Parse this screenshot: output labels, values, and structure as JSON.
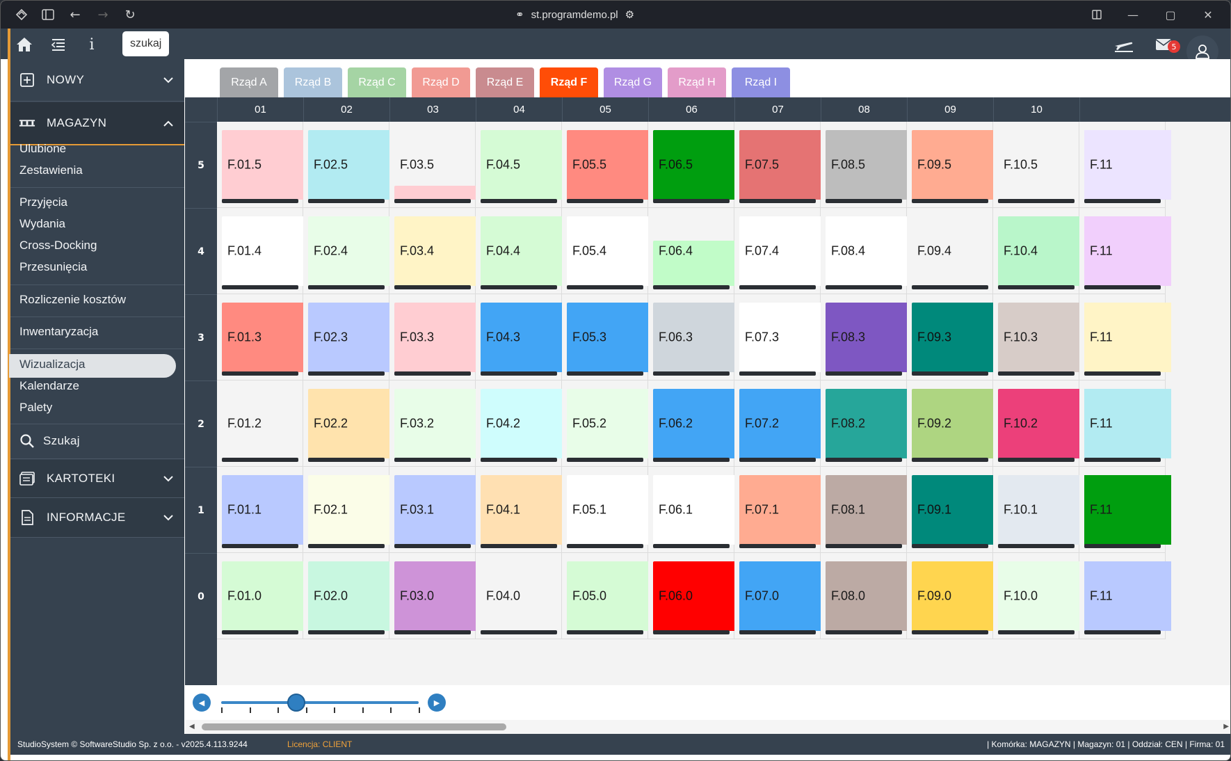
{
  "browser": {
    "url": "st.programdemo.pl"
  },
  "appbar": {
    "search_label": "szukaj",
    "messages_count": "5"
  },
  "sidebar": {
    "sections": {
      "nowy": "NOWY",
      "magazyn": "MAGAZYN",
      "kartoteki": "KARTOTEKI",
      "informacje": "INFORMACJE"
    },
    "items": {
      "ulubione": "Ulubione",
      "zestawienia": "Zestawienia",
      "przyjecia": "Przyjęcia",
      "wydania": "Wydania",
      "cross_docking": "Cross-Docking",
      "przesuniecia": "Przesunięcia",
      "rozliczenie": "Rozliczenie kosztów",
      "inwentaryzacja": "Inwentaryzacja",
      "wizualizacja": "Wizualizacja",
      "kalendarze": "Kalendarze",
      "palety": "Palety",
      "szukaj": "Szukaj"
    }
  },
  "tabs": [
    {
      "label": "Rząd A",
      "color": "#a3a5a8"
    },
    {
      "label": "Rząd B",
      "color": "#abc4dc"
    },
    {
      "label": "Rząd C",
      "color": "#a5d4a4"
    },
    {
      "label": "Rząd D",
      "color": "#f19a93"
    },
    {
      "label": "Rząd E",
      "color": "#c98b8f"
    },
    {
      "label": "Rząd F",
      "color": "#ff4d07",
      "active": true
    },
    {
      "label": "Rząd G",
      "color": "#b08ee3"
    },
    {
      "label": "Rząd H",
      "color": "#e39cc9"
    },
    {
      "label": "Rząd I",
      "color": "#8d8fe2"
    }
  ],
  "columns": [
    "01",
    "02",
    "03",
    "04",
    "05",
    "06",
    "07",
    "08",
    "09",
    "10"
  ],
  "rows": [
    "5",
    "4",
    "3",
    "2",
    "1",
    "0"
  ],
  "cells": [
    [
      {
        "label": "F.01.5",
        "color": "#ffcdd2"
      },
      {
        "label": "F.02.5",
        "color": "#b2ebf2"
      },
      {
        "label": "F.03.5",
        "color": "#ffcdd2",
        "partial": 0.2
      },
      {
        "label": "F.04.5",
        "color": "#d5fbd5"
      },
      {
        "label": "F.05.5",
        "color": "#ff8a80"
      },
      {
        "label": "F.06.5",
        "color": "#009e0f"
      },
      {
        "label": "F.07.5",
        "color": "#e57373"
      },
      {
        "label": "F.08.5",
        "color": "#bdbdbd"
      },
      {
        "label": "F.09.5",
        "color": "#ffab91"
      },
      {
        "label": "F.10.5",
        "color": "none"
      }
    ],
    [
      {
        "label": "F.01.4",
        "color": "#ffffff"
      },
      {
        "label": "F.02.4",
        "color": "#e8fde8"
      },
      {
        "label": "F.03.4",
        "color": "#fff4c6"
      },
      {
        "label": "F.04.4",
        "color": "#d5fbd5"
      },
      {
        "label": "F.05.4",
        "color": "#ffffff"
      },
      {
        "label": "F.06.4",
        "color": "#c1fcc8",
        "partial": 0.65
      },
      {
        "label": "F.07.4",
        "color": "#ffffff"
      },
      {
        "label": "F.08.4",
        "color": "#ffffff"
      },
      {
        "label": "F.09.4",
        "color": "none"
      },
      {
        "label": "F.10.4",
        "color": "#b9f6ca"
      }
    ],
    [
      {
        "label": "F.01.3",
        "color": "#ff8a80"
      },
      {
        "label": "F.02.3",
        "color": "#b9c9ff"
      },
      {
        "label": "F.03.3",
        "color": "#ffcdd2"
      },
      {
        "label": "F.04.3",
        "color": "#42a5f5"
      },
      {
        "label": "F.05.3",
        "color": "#42a5f5"
      },
      {
        "label": "F.06.3",
        "color": "#cfd6dc"
      },
      {
        "label": "F.07.3",
        "color": "#ffffff"
      },
      {
        "label": "F.08.3",
        "color": "#7e57c2"
      },
      {
        "label": "F.09.3",
        "color": "#00897b"
      },
      {
        "label": "F.10.3",
        "color": "#d7ccc8"
      }
    ],
    [
      {
        "label": "F.01.2",
        "color": "none"
      },
      {
        "label": "F.02.2",
        "color": "#ffe3ad"
      },
      {
        "label": "F.03.2",
        "color": "#e8fde8"
      },
      {
        "label": "F.04.2",
        "color": "#cffdfd"
      },
      {
        "label": "F.05.2",
        "color": "#e8fde8"
      },
      {
        "label": "F.06.2",
        "color": "#42a5f5"
      },
      {
        "label": "F.07.2",
        "color": "#42a5f5"
      },
      {
        "label": "F.08.2",
        "color": "#26a69a"
      },
      {
        "label": "F.09.2",
        "color": "#aed581"
      },
      {
        "label": "F.10.2",
        "color": "#ec407a"
      }
    ],
    [
      {
        "label": "F.01.1",
        "color": "#b9c9ff"
      },
      {
        "label": "F.02.1",
        "color": "#fbfde8"
      },
      {
        "label": "F.03.1",
        "color": "#b9c9ff"
      },
      {
        "label": "F.04.1",
        "color": "#ffe0b2"
      },
      {
        "label": "F.05.1",
        "color": "#ffffff"
      },
      {
        "label": "F.06.1",
        "color": "#ffffff"
      },
      {
        "label": "F.07.1",
        "color": "#ffab91"
      },
      {
        "label": "F.08.1",
        "color": "#bcaaa4"
      },
      {
        "label": "F.09.1",
        "color": "#00897b"
      },
      {
        "label": "F.10.1",
        "color": "#e3e9f0"
      }
    ],
    [
      {
        "label": "F.01.0",
        "color": "#d5fbd5"
      },
      {
        "label": "F.02.0",
        "color": "#c8f7e0"
      },
      {
        "label": "F.03.0",
        "color": "#ce93d8"
      },
      {
        "label": "F.04.0",
        "color": "none"
      },
      {
        "label": "F.05.0",
        "color": "#d5fbd5"
      },
      {
        "label": "F.06.0",
        "color": "#ff0000"
      },
      {
        "label": "F.07.0",
        "color": "#42a5f5"
      },
      {
        "label": "F.08.0",
        "color": "#bcaaa4"
      },
      {
        "label": "F.09.0",
        "color": "#ffd54f"
      },
      {
        "label": "F.10.0",
        "color": "#e8fde8"
      }
    ]
  ],
  "partial_column": {
    "label": "F.11",
    "colors": [
      "#ece4ff",
      "#f1cffc",
      "#fff4c6",
      "#b2ebf2",
      "#009e0f",
      "#b9c9ff"
    ]
  },
  "zoom": {
    "level_fraction": 0.38
  },
  "footer": {
    "left": "StudioSystem © SoftwareStudio Sp. z o.o. - v2025.4.113.9244",
    "license": "Licencja: CLIENT",
    "right": "| Komórka: MAGAZYN | Magazyn: 01 | Oddział: CEN | Firma: 01"
  }
}
